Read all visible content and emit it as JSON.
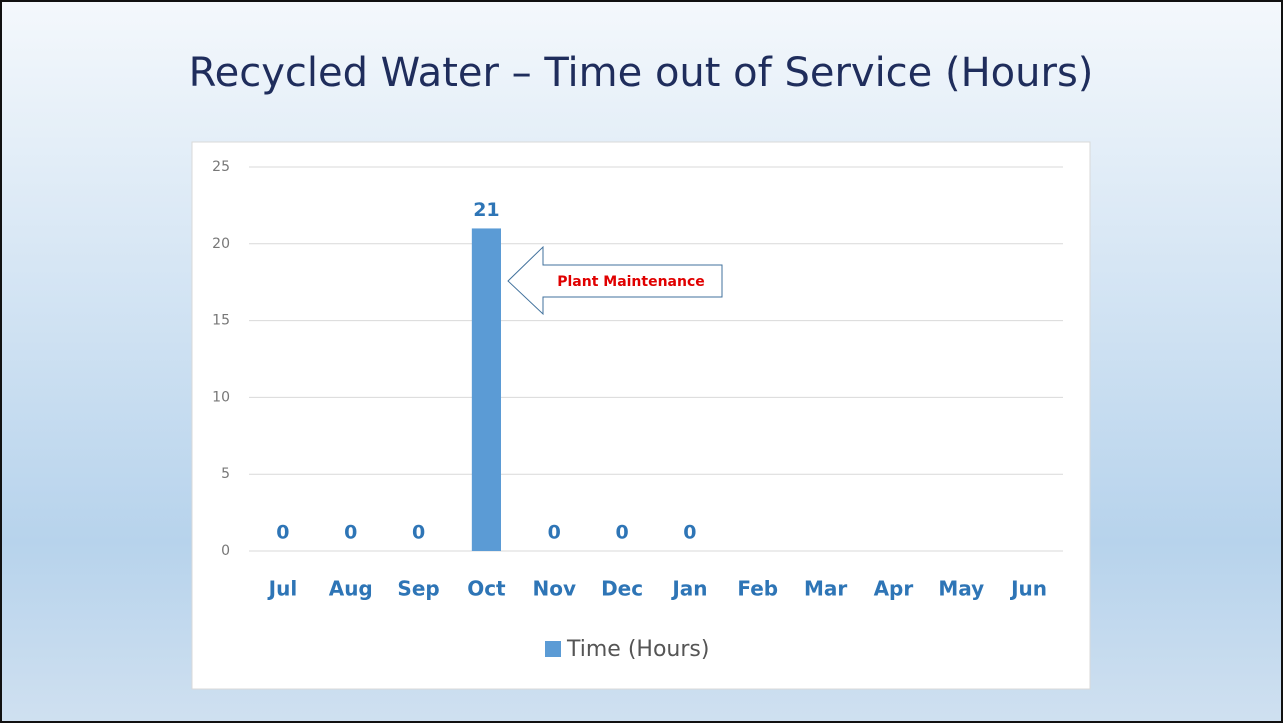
{
  "chart_data": {
    "type": "bar",
    "title": "Recycled Water – Time out of Service (Hours)",
    "categories": [
      "Jul",
      "Aug",
      "Sep",
      "Oct",
      "Nov",
      "Dec",
      "Jan",
      "Feb",
      "Mar",
      "Apr",
      "May",
      "Jun"
    ],
    "series": [
      {
        "name": "Time (Hours)",
        "color": "#5b9bd5",
        "values": [
          0,
          0,
          0,
          21,
          0,
          0,
          0,
          null,
          null,
          null,
          null,
          null
        ]
      }
    ],
    "ylim": [
      0,
      25
    ],
    "yticks": [
      0,
      5,
      10,
      15,
      20,
      25
    ],
    "grid": true,
    "annotation": "Plant Maintenance",
    "legend": "bottom"
  }
}
